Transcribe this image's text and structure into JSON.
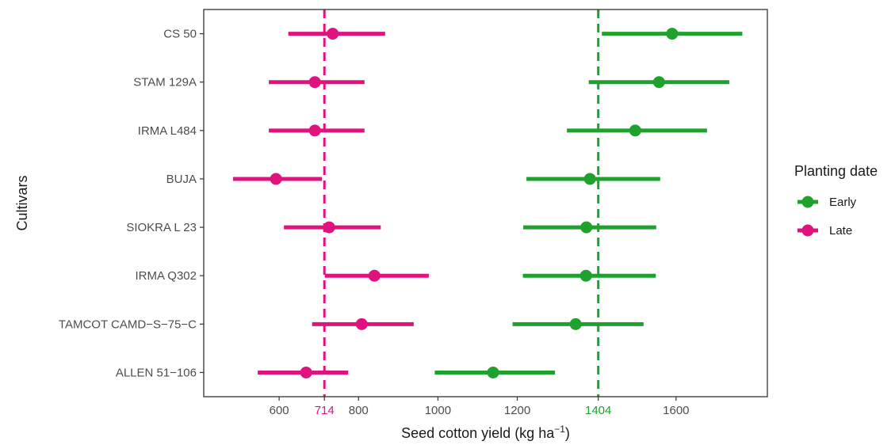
{
  "chart_data": {
    "type": "dot-interval",
    "xlabel": "Seed cotton yield (kg ha",
    "xlabel_sup": "−1",
    "xlabel_close": ")",
    "ylabel": "Cultivars",
    "xlim": [
      410,
      1830
    ],
    "x_ticks": [
      600,
      800,
      1000,
      1200,
      1600
    ],
    "categories": [
      "CS 50",
      "STAM 129A",
      "IRMA L484",
      "BUJA",
      "SIOKRA L 23",
      "IRMA Q302",
      "TAMCOT CAMD−S−75−C",
      "ALLEN 51−106"
    ],
    "legend": {
      "title": "Planting date",
      "position": "right"
    },
    "series": [
      {
        "name": "Early",
        "color": "#1fa12e",
        "values": [
          1590,
          1557,
          1497,
          1383,
          1374,
          1373,
          1347,
          1139
        ],
        "lower": [
          1413,
          1380,
          1325,
          1223,
          1215,
          1214,
          1188,
          992
        ],
        "upper": [
          1767,
          1734,
          1678,
          1560,
          1550,
          1549,
          1518,
          1295
        ]
      },
      {
        "name": "Late",
        "color": "#e0137e",
        "values": [
          735,
          690,
          690,
          592,
          726,
          840,
          808,
          668
        ],
        "lower": [
          623,
          574,
          574,
          484,
          612,
          715,
          683,
          546
        ],
        "upper": [
          867,
          815,
          815,
          708,
          856,
          977,
          939,
          774
        ]
      }
    ],
    "reference_lines": [
      {
        "value": 714,
        "label": "714",
        "color": "#e0137e",
        "series": "Late"
      },
      {
        "value": 1404,
        "label": "1404",
        "color": "#1fa12e",
        "series": "Early"
      }
    ],
    "grid": false
  }
}
